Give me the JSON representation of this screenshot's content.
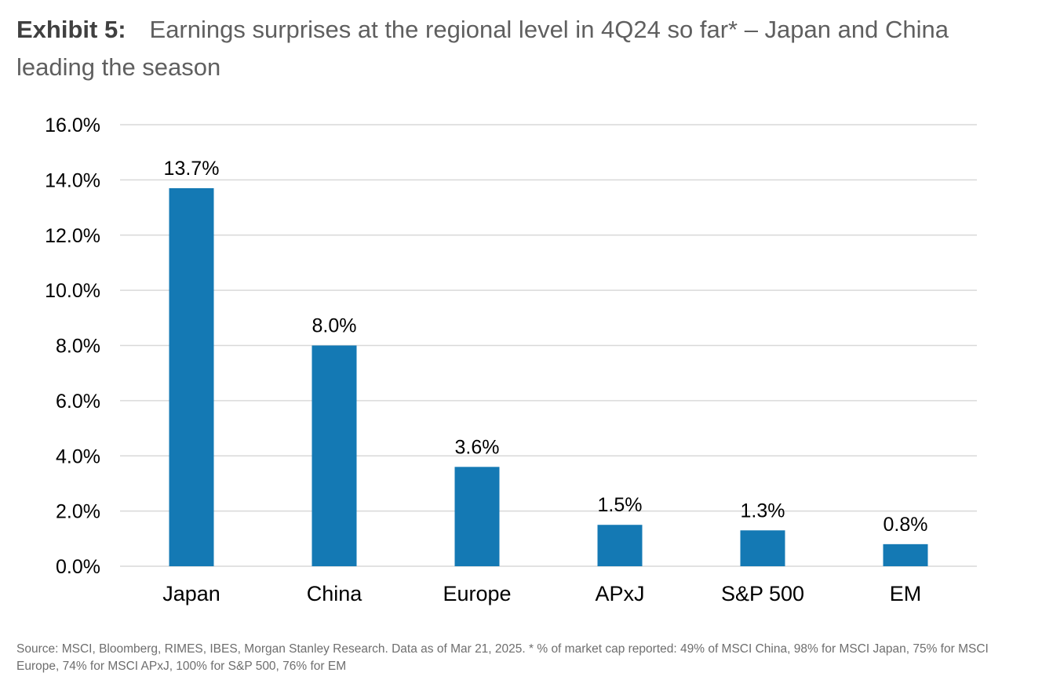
{
  "exhibit_label": "Exhibit 5:",
  "title": "Earnings surprises at the regional level in 4Q24 so far* – Japan and China leading the season",
  "source": "Source: MSCI, Bloomberg, RIMES, IBES, Morgan Stanley Research. Data as of Mar 21, 2025. * % of market cap reported: 49% of MSCI China, 98% for MSCI Japan, 75% for MSCI Europe, 74% for MSCI APxJ, 100% for S&P 500, 76% for EM",
  "colors": {
    "bar": "#1479b4",
    "grid": "#d9d9d9",
    "text": "#000000"
  },
  "chart_data": {
    "type": "bar",
    "categories": [
      "Japan",
      "China",
      "Europe",
      "APxJ",
      "S&P 500",
      "EM"
    ],
    "values": [
      13.7,
      8.0,
      3.6,
      1.5,
      1.3,
      0.8
    ],
    "data_labels": [
      "13.7%",
      "8.0%",
      "3.6%",
      "1.5%",
      "1.3%",
      "0.8%"
    ],
    "yticks": [
      "0.0%",
      "2.0%",
      "4.0%",
      "6.0%",
      "8.0%",
      "10.0%",
      "12.0%",
      "14.0%",
      "16.0%"
    ],
    "ylim": [
      0,
      16
    ],
    "title": "",
    "xlabel": "",
    "ylabel": "",
    "grid": true,
    "legend": "none"
  }
}
